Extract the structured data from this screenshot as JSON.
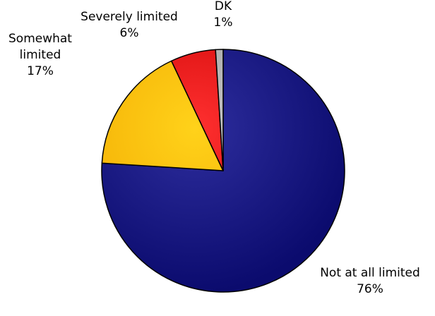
{
  "chart_data": {
    "type": "pie",
    "title": "",
    "slices": [
      {
        "label_lines": [
          "Not at all limited"
        ],
        "value": 76,
        "value_label": "76%",
        "color": "#2E2E9E",
        "color_dark": "#0B0B6E"
      },
      {
        "label_lines": [
          "Somewhat",
          "limited"
        ],
        "value": 17,
        "value_label": "17%",
        "color": "#FFD21A",
        "color_dark": "#F2A800"
      },
      {
        "label_lines": [
          "Severely limited"
        ],
        "value": 6,
        "value_label": "6%",
        "color": "#FF3030",
        "color_dark": "#C80000"
      },
      {
        "label_lines": [
          "DK"
        ],
        "value": 1,
        "value_label": "1%",
        "color": "#C8C8C8",
        "color_dark": "#9A9A9A"
      }
    ],
    "start_angle_deg": 90,
    "direction": "clockwise",
    "edge_color": "#000000",
    "legend": "none"
  }
}
